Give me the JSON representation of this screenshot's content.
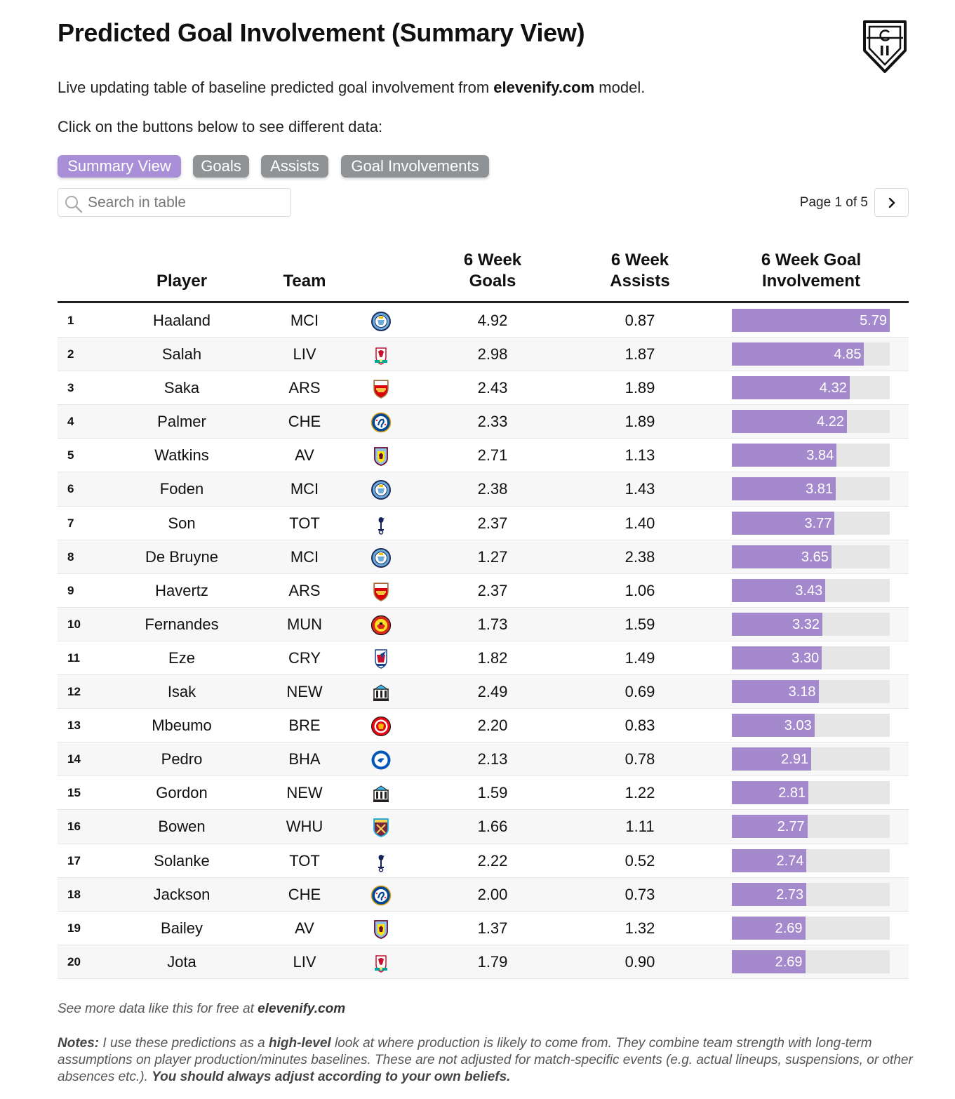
{
  "title": "Predicted Goal Involvement (Summary View)",
  "subtitle": {
    "before": "Live updating table of baseline predicted goal involvement from ",
    "site": "elevenify.com",
    "after": " model."
  },
  "instructions": "Click on the buttons below to see different data:",
  "view_buttons": [
    {
      "label": "Summary View",
      "active": true
    },
    {
      "label": "Goals",
      "active": false
    },
    {
      "label": "Assists",
      "active": false
    },
    {
      "label": "Goal Involvements",
      "active": false
    }
  ],
  "search": {
    "placeholder": "Search in table",
    "value": ""
  },
  "pagination": {
    "label": "Page 1 of 5",
    "current": 1,
    "total": 5
  },
  "headers": {
    "player": "Player",
    "team": "Team",
    "goals_line1": "6 Week",
    "goals_line2": "Goals",
    "assists_line1": "6 Week",
    "assists_line2": "Assists",
    "gi_line1": "6 Week Goal",
    "gi_line2": "Involvement"
  },
  "bar_max": 5.79,
  "rows": [
    {
      "rank": "1",
      "player": "Haaland",
      "team": "MCI",
      "crest": "man-city-crest",
      "goals": "4.92",
      "assists": "0.87",
      "gi": "5.79"
    },
    {
      "rank": "2",
      "player": "Salah",
      "team": "LIV",
      "crest": "liverpool-crest",
      "goals": "2.98",
      "assists": "1.87",
      "gi": "4.85"
    },
    {
      "rank": "3",
      "player": "Saka",
      "team": "ARS",
      "crest": "arsenal-crest",
      "goals": "2.43",
      "assists": "1.89",
      "gi": "4.32"
    },
    {
      "rank": "4",
      "player": "Palmer",
      "team": "CHE",
      "crest": "chelsea-crest",
      "goals": "2.33",
      "assists": "1.89",
      "gi": "4.22"
    },
    {
      "rank": "5",
      "player": "Watkins",
      "team": "AV",
      "crest": "aston-villa-crest",
      "goals": "2.71",
      "assists": "1.13",
      "gi": "3.84"
    },
    {
      "rank": "6",
      "player": "Foden",
      "team": "MCI",
      "crest": "man-city-crest",
      "goals": "2.38",
      "assists": "1.43",
      "gi": "3.81"
    },
    {
      "rank": "7",
      "player": "Son",
      "team": "TOT",
      "crest": "tottenham-crest",
      "goals": "2.37",
      "assists": "1.40",
      "gi": "3.77"
    },
    {
      "rank": "8",
      "player": "De Bruyne",
      "team": "MCI",
      "crest": "man-city-crest",
      "goals": "1.27",
      "assists": "2.38",
      "gi": "3.65"
    },
    {
      "rank": "9",
      "player": "Havertz",
      "team": "ARS",
      "crest": "arsenal-crest",
      "goals": "2.37",
      "assists": "1.06",
      "gi": "3.43"
    },
    {
      "rank": "10",
      "player": "Fernandes",
      "team": "MUN",
      "crest": "man-united-crest",
      "goals": "1.73",
      "assists": "1.59",
      "gi": "3.32"
    },
    {
      "rank": "11",
      "player": "Eze",
      "team": "CRY",
      "crest": "crystal-palace-crest",
      "goals": "1.82",
      "assists": "1.49",
      "gi": "3.30"
    },
    {
      "rank": "12",
      "player": "Isak",
      "team": "NEW",
      "crest": "newcastle-crest",
      "goals": "2.49",
      "assists": "0.69",
      "gi": "3.18"
    },
    {
      "rank": "13",
      "player": "Mbeumo",
      "team": "BRE",
      "crest": "brentford-crest",
      "goals": "2.20",
      "assists": "0.83",
      "gi": "3.03"
    },
    {
      "rank": "14",
      "player": "Pedro",
      "team": "BHA",
      "crest": "brighton-crest",
      "goals": "2.13",
      "assists": "0.78",
      "gi": "2.91"
    },
    {
      "rank": "15",
      "player": "Gordon",
      "team": "NEW",
      "crest": "newcastle-crest",
      "goals": "1.59",
      "assists": "1.22",
      "gi": "2.81"
    },
    {
      "rank": "16",
      "player": "Bowen",
      "team": "WHU",
      "crest": "west-ham-crest",
      "goals": "1.66",
      "assists": "1.11",
      "gi": "2.77"
    },
    {
      "rank": "17",
      "player": "Solanke",
      "team": "TOT",
      "crest": "tottenham-crest",
      "goals": "2.22",
      "assists": "0.52",
      "gi": "2.74"
    },
    {
      "rank": "18",
      "player": "Jackson",
      "team": "CHE",
      "crest": "chelsea-crest",
      "goals": "2.00",
      "assists": "0.73",
      "gi": "2.73"
    },
    {
      "rank": "19",
      "player": "Bailey",
      "team": "AV",
      "crest": "aston-villa-crest",
      "goals": "1.37",
      "assists": "1.32",
      "gi": "2.69"
    },
    {
      "rank": "20",
      "player": "Jota",
      "team": "LIV",
      "crest": "liverpool-crest",
      "goals": "1.79",
      "assists": "0.90",
      "gi": "2.69"
    }
  ],
  "footer": {
    "text": "See more data like this for free at ",
    "site": "elevenify.com"
  },
  "notes": {
    "label": "Notes:",
    "p1": " I use these predictions as a ",
    "emphasis": "high-level",
    "p2": " look at where production is likely to come from. They combine team strength with long-term assumptions on player production/minutes baselines. These are not adjusted for match-specific events (e.g. actual lineups, suspensions, or other absences etc.). ",
    "closing": "You should always adjust according to your own beliefs."
  },
  "colors": {
    "button_active": "#a98ed8",
    "button_inactive": "#8f9396",
    "bar_fill": "#a48acd",
    "bar_track": "#e6e6e6",
    "row_alt": "#f7f7f7"
  }
}
